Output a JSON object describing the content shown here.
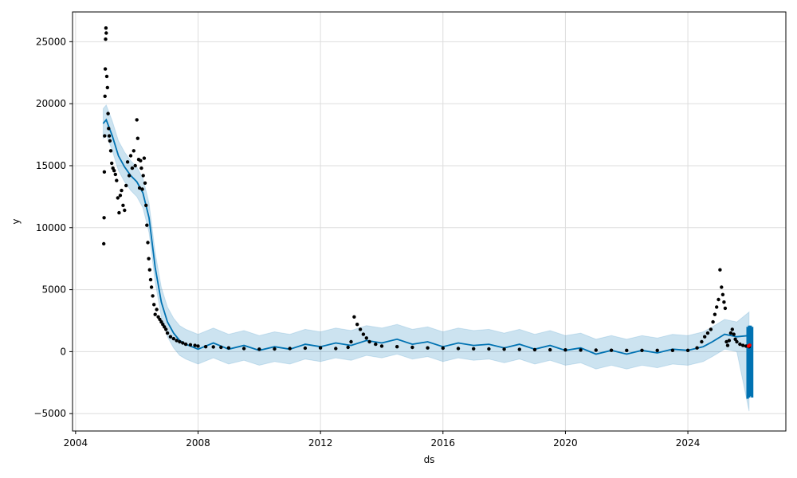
{
  "chart_data": {
    "type": "scatter",
    "title": "",
    "xlabel": "ds",
    "ylabel": "y",
    "x_unit": "year",
    "xlim": [
      2003.9,
      2027.2
    ],
    "ylim": [
      -6400,
      27400
    ],
    "grid": true,
    "x_ticks": [
      {
        "value": 2004,
        "label": "2004"
      },
      {
        "value": 2008,
        "label": "2008"
      },
      {
        "value": 2012,
        "label": "2012"
      },
      {
        "value": 2016,
        "label": "2016"
      },
      {
        "value": 2020,
        "label": "2020"
      },
      {
        "value": 2024,
        "label": "2024"
      }
    ],
    "y_ticks": [
      {
        "value": -5000,
        "label": "−5000"
      },
      {
        "value": 0,
        "label": "0"
      },
      {
        "value": 5000,
        "label": "5000"
      },
      {
        "value": 10000,
        "label": "10000"
      },
      {
        "value": 15000,
        "label": "15000"
      },
      {
        "value": 20000,
        "label": "20000"
      },
      {
        "value": 25000,
        "label": "25000"
      }
    ],
    "colors": {
      "observed": "#000000",
      "forecast_line": "#0072B2",
      "uncertainty_band": "#0072B2",
      "highlight": "#ff0000",
      "grid": "#dddddd"
    },
    "series": [
      {
        "role": "observed",
        "style": "dots",
        "x": [
          2004.92,
          2004.93,
          2004.94,
          2004.95,
          2004.96,
          2004.97,
          2004.98,
          2004.99,
          2005.0,
          2005.02,
          2005.04,
          2005.06,
          2005.08,
          2005.1,
          2005.12,
          2005.15,
          2005.18,
          2005.22,
          2005.26,
          2005.3,
          2005.34,
          2005.38,
          2005.42,
          2005.46,
          2005.5,
          2005.55,
          2005.6,
          2005.65,
          2005.7,
          2005.75,
          2005.8,
          2005.85,
          2005.9,
          2005.95,
          2006.0,
          2006.03,
          2006.06,
          2006.09,
          2006.12,
          2006.15,
          2006.18,
          2006.21,
          2006.24,
          2006.27,
          2006.3,
          2006.33,
          2006.36,
          2006.39,
          2006.42,
          2006.45,
          2006.48,
          2006.52,
          2006.56,
          2006.6,
          2006.65,
          2006.7,
          2006.75,
          2006.8,
          2006.85,
          2006.9,
          2006.95,
          2007.0,
          2007.1,
          2007.2,
          2007.3,
          2007.4,
          2007.5,
          2007.6,
          2007.75,
          2007.9,
          2008.0,
          2008.25,
          2008.5,
          2008.75,
          2009.0,
          2009.5,
          2010.0,
          2010.5,
          2011.0,
          2011.5,
          2012.0,
          2012.5,
          2012.9,
          2013.0,
          2013.1,
          2013.2,
          2013.3,
          2013.4,
          2013.5,
          2013.6,
          2013.8,
          2014.0,
          2014.5,
          2015.0,
          2015.5,
          2016.0,
          2016.5,
          2017.0,
          2017.5,
          2018.0,
          2018.5,
          2019.0,
          2019.5,
          2020.0,
          2020.5,
          2021.0,
          2021.5,
          2022.0,
          2022.5,
          2023.0,
          2023.5,
          2024.0,
          2024.3,
          2024.45,
          2024.55,
          2024.65,
          2024.75,
          2024.82,
          2024.88,
          2024.94,
          2025.0,
          2025.05,
          2025.1,
          2025.14,
          2025.18,
          2025.22,
          2025.26,
          2025.3,
          2025.35,
          2025.4,
          2025.45,
          2025.5,
          2025.55,
          2025.6,
          2025.7,
          2025.8,
          2025.9,
          2026.0
        ],
        "y": [
          8700,
          10800,
          14500,
          17400,
          20600,
          22800,
          25200,
          26100,
          25700,
          22200,
          21300,
          19200,
          18000,
          17400,
          17000,
          16200,
          15200,
          14800,
          14600,
          14300,
          13800,
          12400,
          11200,
          12600,
          13000,
          11800,
          11400,
          13400,
          15300,
          14200,
          15800,
          14800,
          16200,
          15000,
          18700,
          17200,
          15500,
          13200,
          15400,
          14800,
          13100,
          14200,
          15600,
          13600,
          11800,
          10200,
          8800,
          7500,
          6600,
          5800,
          5200,
          4500,
          3800,
          3000,
          3400,
          2800,
          2600,
          2400,
          2200,
          2000,
          1800,
          1500,
          1200,
          1050,
          900,
          800,
          700,
          600,
          550,
          500,
          450,
          400,
          380,
          350,
          300,
          250,
          200,
          220,
          250,
          280,
          300,
          250,
          350,
          800,
          2800,
          2200,
          1800,
          1400,
          1100,
          800,
          600,
          450,
          400,
          350,
          300,
          280,
          250,
          230,
          220,
          200,
          180,
          160,
          150,
          140,
          130,
          120,
          110,
          100,
          100,
          100,
          100,
          100,
          300,
          800,
          1200,
          1500,
          1800,
          2400,
          3000,
          3600,
          4200,
          6600,
          5200,
          4600,
          4000,
          3500,
          800,
          500,
          900,
          1500,
          1800,
          1400,
          1000,
          800,
          600,
          500,
          450,
          400
        ]
      },
      {
        "role": "forecast",
        "style": "line",
        "x": [
          2004.9,
          2005.0,
          2005.2,
          2005.4,
          2005.6,
          2005.8,
          2006.0,
          2006.2,
          2006.4,
          2006.6,
          2006.8,
          2007.0,
          2007.2,
          2007.4,
          2007.6,
          2007.8,
          2008.0,
          2008.5,
          2009.0,
          2009.5,
          2010.0,
          2010.5,
          2011.0,
          2011.5,
          2012.0,
          2012.5,
          2013.0,
          2013.5,
          2014.0,
          2014.5,
          2015.0,
          2015.5,
          2016.0,
          2016.5,
          2017.0,
          2017.5,
          2018.0,
          2018.5,
          2019.0,
          2019.5,
          2020.0,
          2020.5,
          2021.0,
          2021.5,
          2022.0,
          2022.5,
          2023.0,
          2023.5,
          2024.0,
          2024.5,
          2024.8,
          2025.2,
          2025.6,
          2026.0
        ],
        "y": [
          18400,
          18700,
          17400,
          15800,
          14900,
          14200,
          13700,
          12800,
          10800,
          6800,
          4000,
          2400,
          1500,
          900,
          600,
          400,
          200,
          700,
          200,
          500,
          100,
          400,
          200,
          600,
          400,
          700,
          500,
          900,
          700,
          1000,
          600,
          800,
          400,
          700,
          500,
          600,
          300,
          600,
          200,
          500,
          100,
          300,
          -200,
          100,
          -200,
          100,
          -100,
          200,
          100,
          400,
          800,
          1400,
          1200,
          1300
        ]
      },
      {
        "role": "uncertainty_band",
        "style": "band",
        "x": [
          2004.9,
          2005.0,
          2005.2,
          2005.4,
          2005.6,
          2005.8,
          2006.0,
          2006.2,
          2006.4,
          2006.6,
          2006.8,
          2007.0,
          2007.2,
          2007.4,
          2007.6,
          2007.8,
          2008.0,
          2008.5,
          2009.0,
          2009.5,
          2010.0,
          2010.5,
          2011.0,
          2011.5,
          2012.0,
          2012.5,
          2013.0,
          2013.5,
          2014.0,
          2014.5,
          2015.0,
          2015.5,
          2016.0,
          2016.5,
          2017.0,
          2017.5,
          2018.0,
          2018.5,
          2019.0,
          2019.5,
          2020.0,
          2020.5,
          2021.0,
          2021.5,
          2022.0,
          2022.5,
          2023.0,
          2023.5,
          2024.0,
          2024.5,
          2024.8,
          2025.2,
          2025.6,
          2026.0
        ],
        "upper": [
          19600,
          19900,
          18600,
          17000,
          16100,
          15400,
          14900,
          14000,
          12000,
          8000,
          5200,
          3600,
          2700,
          2100,
          1800,
          1600,
          1400,
          1900,
          1400,
          1700,
          1300,
          1600,
          1400,
          1800,
          1600,
          1900,
          1700,
          2100,
          1900,
          2200,
          1800,
          2000,
          1600,
          1900,
          1700,
          1800,
          1500,
          1800,
          1400,
          1700,
          1300,
          1500,
          1000,
          1300,
          1000,
          1300,
          1100,
          1400,
          1300,
          1600,
          2000,
          2600,
          2400,
          3200
        ],
        "lower": [
          17200,
          17500,
          16200,
          14600,
          13700,
          13000,
          12500,
          11600,
          9600,
          5600,
          2800,
          1200,
          300,
          -300,
          -600,
          -800,
          -1000,
          -500,
          -1000,
          -700,
          -1100,
          -800,
          -1000,
          -600,
          -800,
          -500,
          -700,
          -300,
          -500,
          -200,
          -600,
          -400,
          -800,
          -500,
          -700,
          -600,
          -900,
          -600,
          -1000,
          -700,
          -1100,
          -900,
          -1400,
          -1100,
          -1400,
          -1100,
          -1300,
          -1000,
          -1100,
          -800,
          -400,
          200,
          0,
          -4800
        ]
      },
      {
        "role": "forecast_range",
        "style": "bar",
        "x": [
          2025.95,
          2026.0,
          2026.05,
          2026.1
        ],
        "upper": [
          2000,
          2100,
          2100,
          2000
        ],
        "lower": [
          -3800,
          -3700,
          -3600,
          -3700
        ]
      },
      {
        "role": "highlight",
        "style": "dots",
        "x": [
          2025.98,
          2026.02
        ],
        "y": [
          450,
          520
        ]
      }
    ]
  }
}
